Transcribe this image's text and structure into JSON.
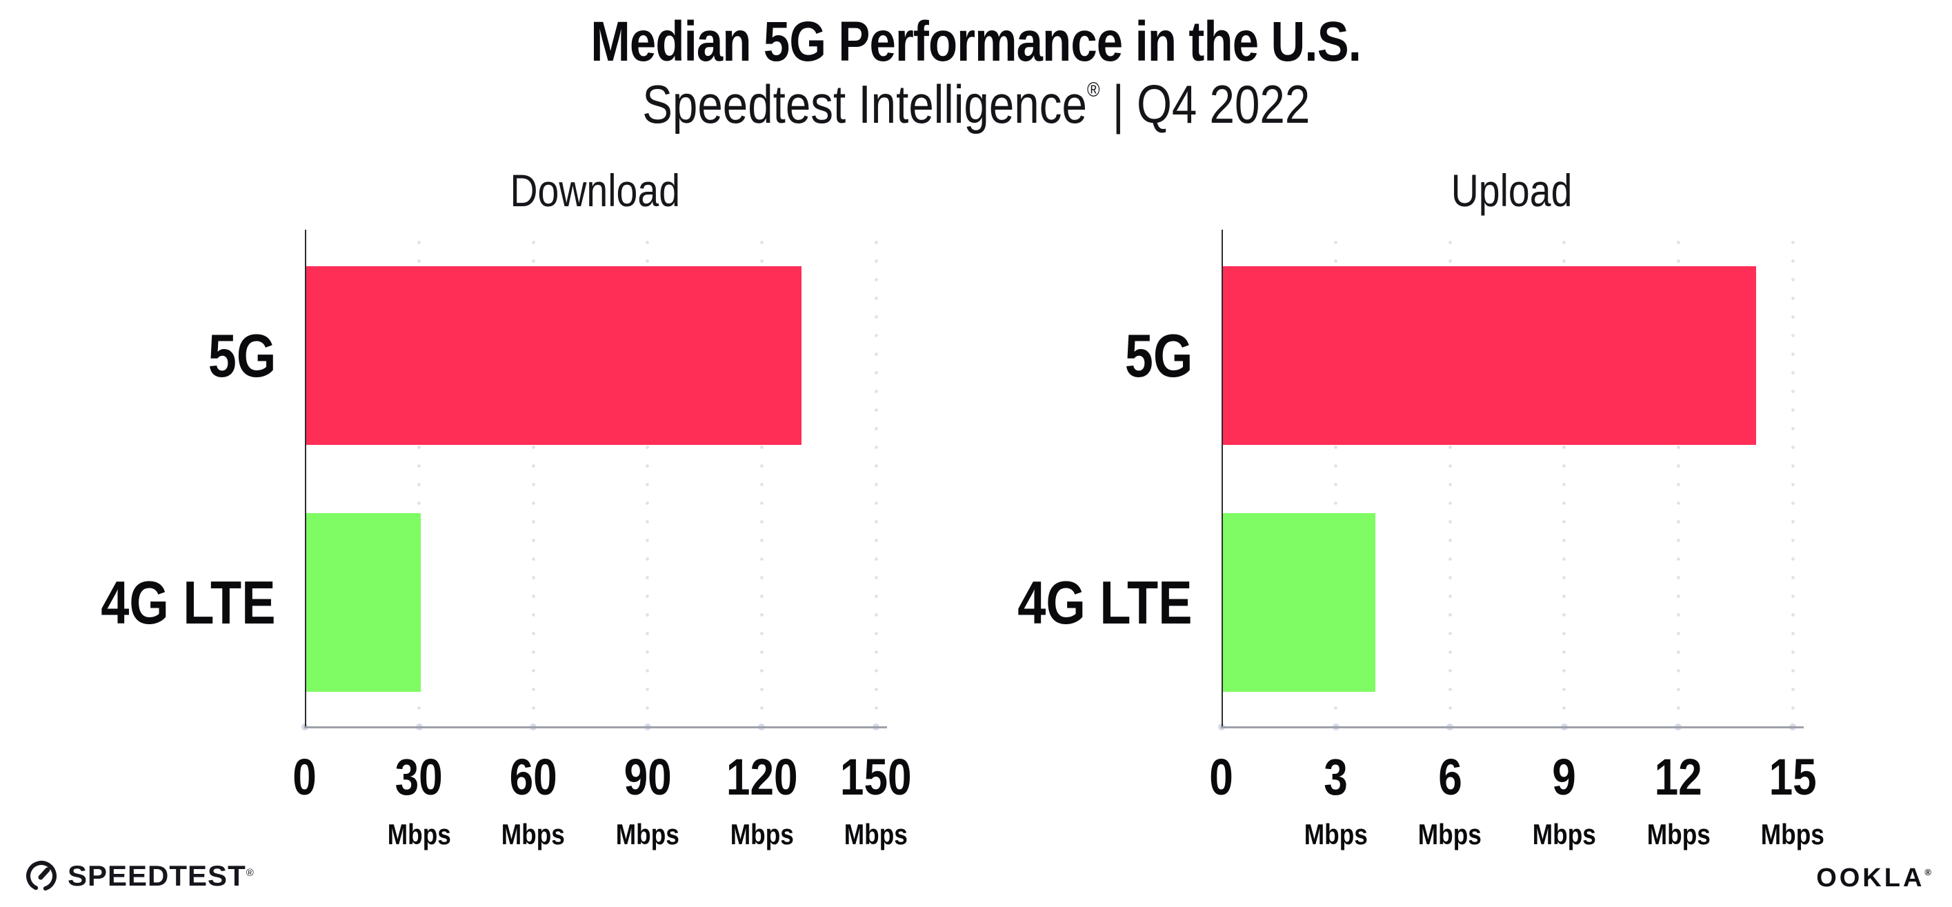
{
  "header": {
    "title": "Median 5G Performance in the U.S.",
    "subtitle_brand": "Speedtest Intelligence",
    "subtitle_reg": "®",
    "subtitle_rest": " | Q4 2022"
  },
  "chart_data": [
    {
      "type": "bar",
      "orientation": "horizontal",
      "title": "Download",
      "categories": [
        "5G",
        "4G LTE"
      ],
      "values": [
        130,
        30
      ],
      "unit": "Mbps",
      "xlabel": "",
      "ylabel": "",
      "xlim": [
        0,
        150
      ],
      "xticks": [
        0,
        30,
        60,
        90,
        120,
        150
      ],
      "tick_unit_label": "Mbps",
      "bar_colors": [
        "#FF2E56",
        "#7FFB63"
      ],
      "grid": "dotted-vertical",
      "legend": "none"
    },
    {
      "type": "bar",
      "orientation": "horizontal",
      "title": "Upload",
      "categories": [
        "5G",
        "4G LTE"
      ],
      "values": [
        14,
        4
      ],
      "unit": "Mbps",
      "xlabel": "",
      "ylabel": "",
      "xlim": [
        0,
        15
      ],
      "xticks": [
        0,
        3,
        6,
        9,
        12,
        15
      ],
      "tick_unit_label": "Mbps",
      "bar_colors": [
        "#FF2E56",
        "#7FFB63"
      ],
      "grid": "dotted-vertical",
      "legend": "none"
    }
  ],
  "colors": {
    "bar_5g": "#FF2E56",
    "bar_4g_lte": "#7FFB63",
    "x_axis": "#9EA1A9",
    "y_axis": "#2B2B30",
    "gridline_dots": "#DFE1ED",
    "axis_tick_dots": "#D6D9E8",
    "text": "#0B0B0F",
    "background": "#FFFFFF"
  },
  "footer": {
    "speedtest_label": "SPEEDTEST",
    "speedtest_reg": "®",
    "ookla_label": "OOKLA",
    "ookla_reg": "®"
  }
}
